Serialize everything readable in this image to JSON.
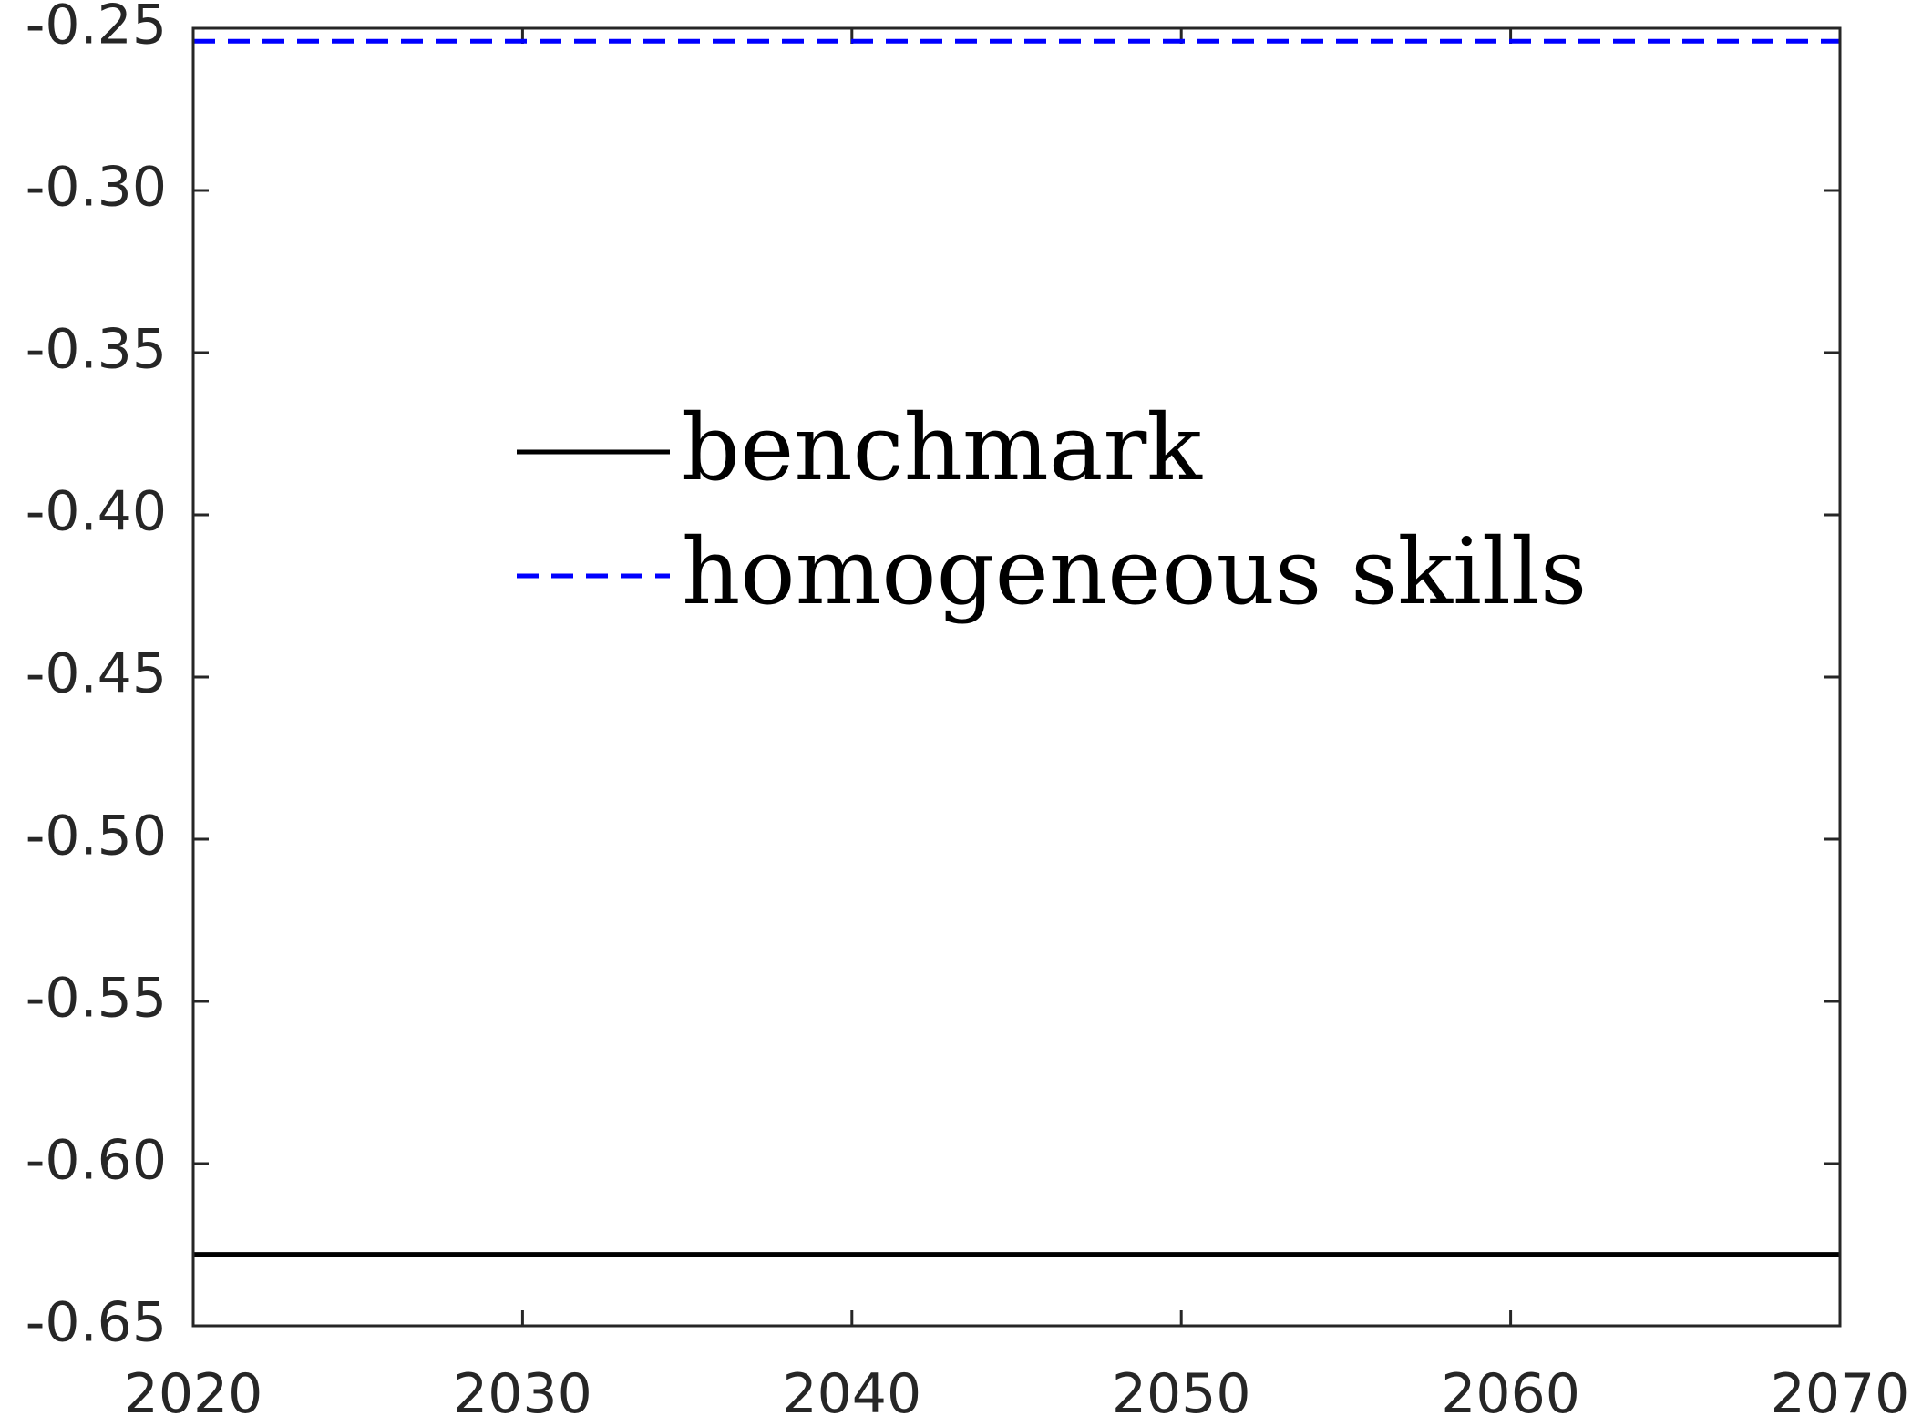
{
  "chart_data": {
    "type": "line",
    "title": "",
    "xlabel": "",
    "ylabel": "",
    "xlim": [
      2020,
      2070
    ],
    "ylim": [
      -0.65,
      -0.25
    ],
    "x_ticks": [
      2020,
      2030,
      2040,
      2050,
      2060,
      2070
    ],
    "x_tick_labels": [
      "2020",
      "2030",
      "2040",
      "2050",
      "2060",
      "2070"
    ],
    "y_ticks": [
      -0.25,
      -0.3,
      -0.35,
      -0.4,
      -0.45,
      -0.5,
      -0.55,
      -0.6,
      -0.65
    ],
    "y_tick_labels": [
      "-0.25",
      "-0.30",
      "-0.35",
      "-0.40",
      "-0.45",
      "-0.50",
      "-0.55",
      "-0.60",
      "-0.65"
    ],
    "grid": false,
    "legend_position": "upper-center",
    "series": [
      {
        "name": "benchmark",
        "color": "#000000",
        "style": "solid",
        "x": [
          2020,
          2070
        ],
        "y": [
          -0.628,
          -0.628
        ]
      },
      {
        "name": "homogeneous skills",
        "color": "#0000ff",
        "style": "dashed",
        "x": [
          2020,
          2070
        ],
        "y": [
          -0.254,
          -0.254
        ]
      }
    ]
  }
}
